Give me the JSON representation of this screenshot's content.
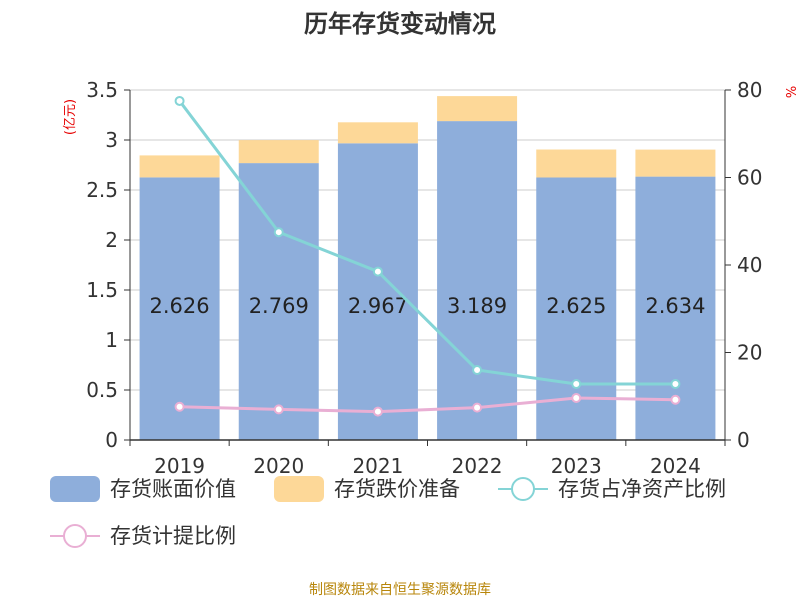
{
  "chart_data": {
    "type": "bar",
    "title": "历年存货变动情况",
    "y_left_unit": "(亿元)",
    "y_right_unit": "%",
    "categories": [
      "2019",
      "2020",
      "2021",
      "2022",
      "2023",
      "2024"
    ],
    "y_left_ticks": [
      "0",
      "0.5",
      "1",
      "1.5",
      "2",
      "2.5",
      "3",
      "3.5"
    ],
    "y_left_lim": [
      0,
      3.5
    ],
    "y_right_ticks": [
      "0",
      "20",
      "40",
      "60",
      "80"
    ],
    "y_right_lim": [
      0,
      80
    ],
    "grid": true,
    "legend_position": "bottom",
    "series": [
      {
        "name": "存货账面价值",
        "kind": "bar",
        "axis": "left",
        "color": "#8eaedb",
        "values": [
          2.626,
          2.769,
          2.967,
          3.189,
          2.625,
          2.634
        ],
        "labels": [
          "2.626",
          "2.769",
          "2.967",
          "3.189",
          "2.625",
          "2.634"
        ]
      },
      {
        "name": "存货跌价准备",
        "kind": "bar",
        "axis": "left",
        "color": "#fdd898",
        "values": [
          0.22,
          0.23,
          0.21,
          0.25,
          0.28,
          0.27
        ]
      },
      {
        "name": "存货占净资产比例",
        "kind": "line",
        "axis": "right",
        "color": "#84d4d6",
        "values": [
          77.5,
          47.5,
          38.5,
          16.0,
          12.8,
          12.8
        ]
      },
      {
        "name": "存货计提比例",
        "kind": "line",
        "axis": "right",
        "color": "#e9afd4",
        "values": [
          7.6,
          7.0,
          6.5,
          7.4,
          9.6,
          9.2
        ]
      }
    ]
  },
  "source": "制图数据来自恒生聚源数据库"
}
